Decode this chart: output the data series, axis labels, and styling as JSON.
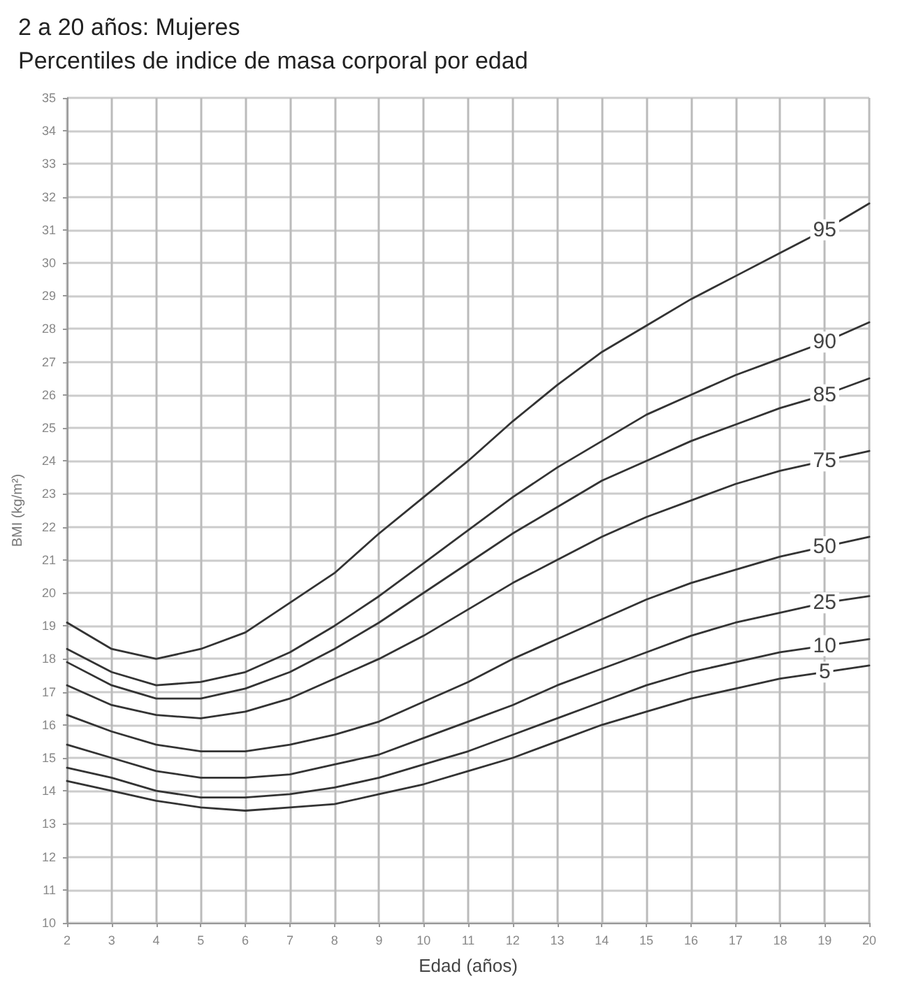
{
  "chart_data": {
    "type": "line",
    "title": "2 a 20 años: Mujeres",
    "subtitle": "Percentiles de indice de masa corporal por edad",
    "xlabel": "Edad (años)",
    "ylabel": "BMI (kg/m²)",
    "x": [
      2,
      3,
      4,
      5,
      6,
      7,
      8,
      9,
      10,
      11,
      12,
      13,
      14,
      15,
      16,
      17,
      18,
      19,
      20
    ],
    "series": [
      {
        "name": "95",
        "color": "#333333",
        "values": [
          19.1,
          18.3,
          18.0,
          18.3,
          18.8,
          19.7,
          20.6,
          21.8,
          22.9,
          24.0,
          25.2,
          26.3,
          27.3,
          28.1,
          28.9,
          29.6,
          30.3,
          31.0,
          31.8
        ]
      },
      {
        "name": "90",
        "color": "#333333",
        "values": [
          18.3,
          17.6,
          17.2,
          17.3,
          17.6,
          18.2,
          19.0,
          19.9,
          20.9,
          21.9,
          22.9,
          23.8,
          24.6,
          25.4,
          26.0,
          26.6,
          27.1,
          27.6,
          28.2
        ]
      },
      {
        "name": "85",
        "color": "#333333",
        "values": [
          17.9,
          17.2,
          16.8,
          16.8,
          17.1,
          17.6,
          18.3,
          19.1,
          20.0,
          20.9,
          21.8,
          22.6,
          23.4,
          24.0,
          24.6,
          25.1,
          25.6,
          26.0,
          26.5
        ]
      },
      {
        "name": "75",
        "color": "#333333",
        "values": [
          17.2,
          16.6,
          16.3,
          16.2,
          16.4,
          16.8,
          17.4,
          18.0,
          18.7,
          19.5,
          20.3,
          21.0,
          21.7,
          22.3,
          22.8,
          23.3,
          23.7,
          24.0,
          24.3
        ]
      },
      {
        "name": "50",
        "color": "#333333",
        "values": [
          16.3,
          15.8,
          15.4,
          15.2,
          15.2,
          15.4,
          15.7,
          16.1,
          16.7,
          17.3,
          18.0,
          18.6,
          19.2,
          19.8,
          20.3,
          20.7,
          21.1,
          21.4,
          21.7
        ]
      },
      {
        "name": "25",
        "color": "#333333",
        "values": [
          15.4,
          15.0,
          14.6,
          14.4,
          14.4,
          14.5,
          14.8,
          15.1,
          15.6,
          16.1,
          16.6,
          17.2,
          17.7,
          18.2,
          18.7,
          19.1,
          19.4,
          19.7,
          19.9
        ]
      },
      {
        "name": "10",
        "color": "#333333",
        "values": [
          14.7,
          14.4,
          14.0,
          13.8,
          13.8,
          13.9,
          14.1,
          14.4,
          14.8,
          15.2,
          15.7,
          16.2,
          16.7,
          17.2,
          17.6,
          17.9,
          18.2,
          18.4,
          18.6
        ]
      },
      {
        "name": "5",
        "color": "#333333",
        "values": [
          14.3,
          14.0,
          13.7,
          13.5,
          13.4,
          13.5,
          13.6,
          13.9,
          14.2,
          14.6,
          15.0,
          15.5,
          16.0,
          16.4,
          16.8,
          17.1,
          17.4,
          17.6,
          17.8
        ]
      }
    ],
    "xlim": [
      2,
      20
    ],
    "xticks": [
      2,
      3,
      4,
      5,
      6,
      7,
      8,
      9,
      10,
      11,
      12,
      13,
      14,
      15,
      16,
      17,
      18,
      19,
      20
    ],
    "ylim": [
      10,
      35
    ],
    "yticks": [
      10,
      11,
      12,
      13,
      14,
      15,
      16,
      17,
      18,
      19,
      20,
      21,
      22,
      23,
      24,
      25,
      26,
      27,
      28,
      29,
      30,
      31,
      32,
      33,
      34,
      35
    ],
    "grid": true,
    "legend": false,
    "marker": "none",
    "line_style": "solid"
  }
}
